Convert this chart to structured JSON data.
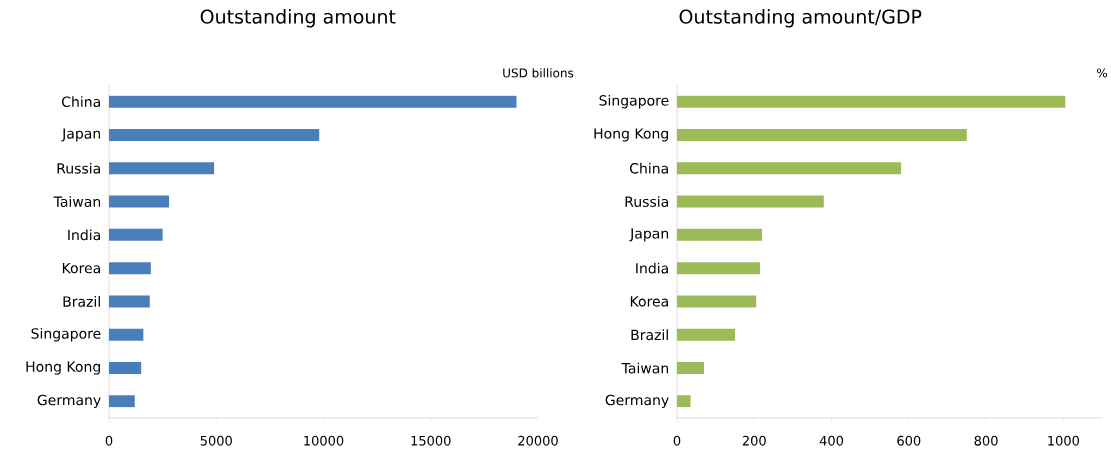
{
  "chart_data": [
    {
      "type": "bar",
      "orientation": "horizontal",
      "title": "Outstanding amount",
      "xlabel": "USD billions",
      "categories": [
        "China",
        "Japan",
        "Russia",
        "Taiwan",
        "India",
        "Korea",
        "Brazil",
        "Singapore",
        "Hong Kong",
        "Germany"
      ],
      "values": [
        19000,
        9800,
        4900,
        2800,
        2500,
        1950,
        1900,
        1600,
        1500,
        1200
      ],
      "color": "#4a7ebb",
      "xlim": [
        0,
        20000
      ],
      "xticks": [
        0,
        5000,
        10000,
        15000,
        20000
      ]
    },
    {
      "type": "bar",
      "orientation": "horizontal",
      "title": "Outstanding amount/GDP",
      "xlabel": "%",
      "categories": [
        "Singapore",
        "Hong Kong",
        "China",
        "Russia",
        "Japan",
        "India",
        "Korea",
        "Brazil",
        "Taiwan",
        "Germany"
      ],
      "values": [
        1005,
        750,
        580,
        380,
        220,
        215,
        205,
        150,
        70,
        35
      ],
      "color": "#9bbb59",
      "xlim": [
        0,
        1100
      ],
      "xticks": [
        0,
        200,
        400,
        600,
        800,
        1000
      ]
    }
  ]
}
